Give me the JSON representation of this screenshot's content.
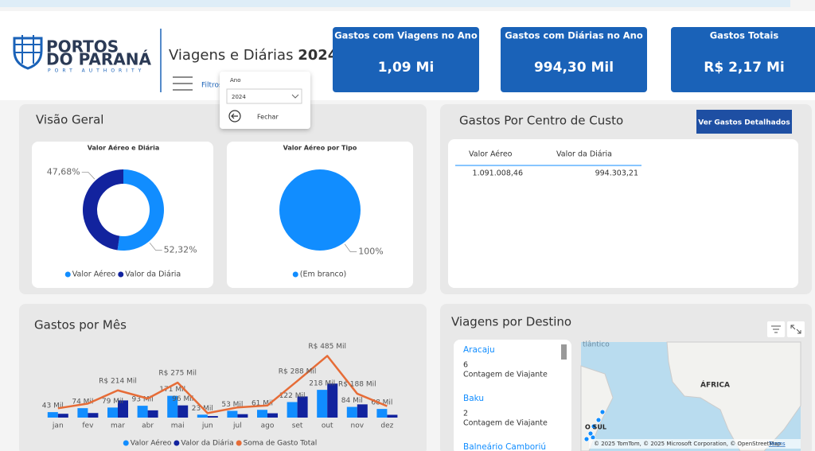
{
  "header": {
    "logo": {
      "line1": "PORTOS",
      "line2": "DO PARANÁ",
      "line3": "PORT AUTHORITY"
    },
    "title": "Viagens e Diárias",
    "year": "2024",
    "filters_label": "Filtros"
  },
  "filter_popup": {
    "label": "Ano",
    "selected": "2024",
    "close": "Fechar"
  },
  "kpis": [
    {
      "title": "Gastos com Viagens no Ano",
      "value": "1,09 Mi"
    },
    {
      "title": "Gastos com Diárias no Ano",
      "value": "994,30 Mil"
    },
    {
      "title": "Gastos Totais",
      "value": "R$ 2,17 Mi"
    }
  ],
  "panels": {
    "overview": "Visão Geral",
    "cost_center": "Gastos Por Centro de Custo",
    "details_button": "Ver Gastos Detalhados",
    "destinations": "Viagens por Destino"
  },
  "cost_table": {
    "columns": [
      "Valor Aéreo",
      "Valor da Diária"
    ],
    "rows": [
      [
        "1.091.008,46",
        "994.303,21"
      ]
    ]
  },
  "destinations": [
    {
      "name": "Aracaju",
      "count": "6",
      "measure": "Contagem de Viajante"
    },
    {
      "name": "Baku",
      "count": "2",
      "measure": "Contagem de Viajante"
    },
    {
      "name": "Balneário Camboriú"
    }
  ],
  "map": {
    "ocean": "tlântico",
    "continent": "ÁFRICA",
    "region": "O SUL",
    "credits": "© 2025 TomTom, © 2025 Microsoft Corporation, © OpenStreetMap",
    "terms": "Terms"
  },
  "chart_data": [
    {
      "type": "donut",
      "title": "Valor Aéreo e Diária",
      "categories": [
        "Valor Aéreo",
        "Valor da Diária"
      ],
      "values": [
        52.32,
        47.68
      ],
      "value_labels": [
        "52,32%",
        "47,68%"
      ],
      "colors": [
        "#118dff",
        "#12239e"
      ]
    },
    {
      "type": "pie",
      "title": "Valor Aéreo por Tipo",
      "categories": [
        "(Em branco)"
      ],
      "values": [
        100
      ],
      "value_labels": [
        "100%"
      ],
      "colors": [
        "#118dff"
      ]
    },
    {
      "type": "bar-line",
      "title": "Gastos por Mês",
      "categories": [
        "jan",
        "fev",
        "mar",
        "abr",
        "mai",
        "jun",
        "jul",
        "ago",
        "set",
        "out",
        "nov",
        "dez"
      ],
      "ylim": [
        0,
        500
      ],
      "series": [
        {
          "name": "Valor Aéreo",
          "color": "#118dff",
          "kind": "bar",
          "values": [
            43,
            74,
            79,
            93,
            171,
            23,
            53,
            61,
            122,
            218,
            84,
            68
          ],
          "value_labels": [
            "43 Mil",
            "74 Mil",
            "79 Mil",
            "93 Mil",
            "171 Mil",
            "23 Mil",
            "53 Mil",
            "61 Mil",
            "122 Mil",
            "218 Mil",
            "84 Mil",
            "68 Mil"
          ]
        },
        {
          "name": "Valor da Diária",
          "color": "#12239e",
          "kind": "bar",
          "values": [
            30,
            36,
            135,
            57,
            96,
            12,
            27,
            34,
            166,
            267,
            104,
            22
          ],
          "value_labels": [
            null,
            null,
            null,
            null,
            "96 Mil",
            null,
            null,
            null,
            null,
            null,
            null,
            null
          ]
        },
        {
          "name": "Soma de Gasto Total",
          "color": "#e66c37",
          "kind": "line",
          "values": [
            73,
            110,
            214,
            150,
            275,
            35,
            80,
            95,
            288,
            485,
            188,
            90
          ],
          "value_labels": [
            null,
            null,
            "R$ 214 Mil",
            null,
            "R$ 275 Mil",
            null,
            null,
            null,
            "R$ 288 Mil",
            "R$ 485 Mil",
            "R$ 188 Mil",
            null
          ]
        }
      ]
    }
  ]
}
